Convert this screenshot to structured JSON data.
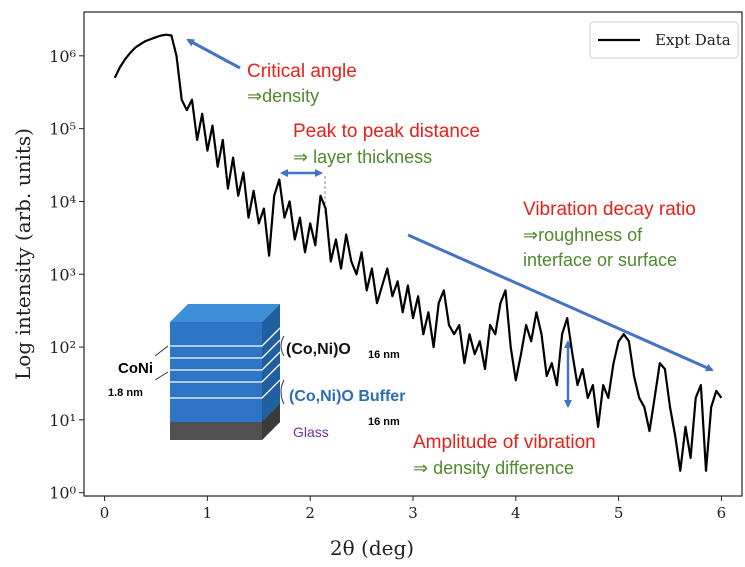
{
  "chart_data": {
    "type": "line",
    "xlabel": "2θ (deg)",
    "ylabel": "Log intensity (arb. units)",
    "x": [
      0.1,
      0.15,
      0.2,
      0.25,
      0.3,
      0.35,
      0.4,
      0.45,
      0.5,
      0.55,
      0.6,
      0.65,
      0.7,
      0.75,
      0.8,
      0.85,
      0.9,
      0.95,
      1.0,
      1.05,
      1.1,
      1.15,
      1.2,
      1.25,
      1.3,
      1.35,
      1.4,
      1.45,
      1.5,
      1.55,
      1.6,
      1.65,
      1.7,
      1.75,
      1.8,
      1.85,
      1.9,
      1.95,
      2.0,
      2.05,
      2.1,
      2.15,
      2.2,
      2.25,
      2.3,
      2.35,
      2.4,
      2.45,
      2.5,
      2.55,
      2.6,
      2.65,
      2.7,
      2.75,
      2.8,
      2.85,
      2.9,
      2.95,
      3.0,
      3.05,
      3.1,
      3.15,
      3.2,
      3.25,
      3.3,
      3.35,
      3.4,
      3.45,
      3.5,
      3.55,
      3.6,
      3.65,
      3.7,
      3.75,
      3.8,
      3.85,
      3.9,
      3.95,
      4.0,
      4.05,
      4.1,
      4.15,
      4.2,
      4.25,
      4.3,
      4.35,
      4.4,
      4.45,
      4.5,
      4.55,
      4.6,
      4.65,
      4.7,
      4.75,
      4.8,
      4.85,
      4.9,
      4.95,
      5.0,
      5.05,
      5.1,
      5.15,
      5.2,
      5.25,
      5.3,
      5.35,
      5.4,
      5.45,
      5.5,
      5.55,
      5.6,
      5.65,
      5.7,
      5.75,
      5.8,
      5.85,
      5.9,
      5.95,
      6.0
    ],
    "series": [
      {
        "name": "Expt Data",
        "color": "#000000",
        "values": [
          500000,
          700000,
          900000,
          1100000,
          1300000,
          1450000,
          1600000,
          1700000,
          1800000,
          1900000,
          1950000,
          1900000,
          1000000,
          250000,
          180000,
          250000,
          70000,
          160000,
          50000,
          110000,
          30000,
          70000,
          15000,
          40000,
          12000,
          25000,
          6000,
          14000,
          5000,
          8000,
          1800,
          12000,
          20000,
          6000,
          10000,
          3000,
          6000,
          2000,
          5000,
          2500,
          12000,
          8000,
          1500,
          3000,
          1200,
          3500,
          1500,
          1000,
          2000,
          600,
          1200,
          400,
          700,
          1200,
          500,
          800,
          300,
          700,
          250,
          500,
          150,
          300,
          100,
          400,
          600,
          200,
          150,
          200,
          60,
          150,
          80,
          120,
          50,
          200,
          150,
          400,
          600,
          100,
          35,
          80,
          200,
          120,
          300,
          150,
          40,
          60,
          30,
          150,
          250,
          80,
          30,
          50,
          20,
          30,
          8,
          30,
          20,
          60,
          120,
          150,
          120,
          40,
          20,
          15,
          7,
          20,
          60,
          50,
          15,
          6,
          2,
          8,
          3,
          20,
          30,
          2,
          15,
          25,
          20
        ]
      }
    ],
    "xlim": [
      -0.2,
      6.2
    ],
    "xticks": [
      0,
      1,
      2,
      3,
      4,
      5,
      6
    ],
    "ylim": [
      0.9,
      4000000
    ],
    "yticks": [
      {
        "value": 1,
        "label": "10⁰"
      },
      {
        "value": 10,
        "label": "10¹"
      },
      {
        "value": 100,
        "label": "10²"
      },
      {
        "value": 1000,
        "label": "10³"
      },
      {
        "value": 10000,
        "label": "10⁴"
      },
      {
        "value": 100000,
        "label": "10⁵"
      },
      {
        "value": 1000000,
        "label": "10⁶"
      }
    ],
    "log_y": true,
    "legend": "upper right",
    "annotations": [
      "Critical angle",
      "⇒density",
      "Peak to peak distance",
      "⇒ layer thickness",
      "Vibration decay ratio",
      "⇒roughness of",
      "interface or surface",
      "Amplitude of vibration",
      "⇒ density difference"
    ],
    "inset_labels": [
      "CoNi",
      "1.8 nm",
      "(Co,Ni)O",
      "16 nm",
      "(Co,Ni)O Buffer",
      "16 nm",
      "Glass"
    ]
  }
}
